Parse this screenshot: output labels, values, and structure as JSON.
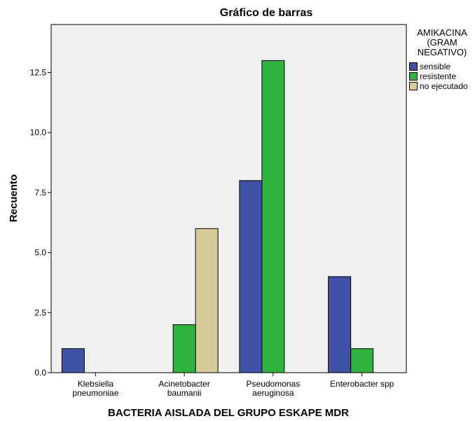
{
  "chart_data": {
    "type": "bar",
    "title": "Gráfico de barras",
    "xlabel": "BACTERIA AISLADA DEL GRUPO ESKAPE MDR",
    "ylabel": "Recuento",
    "categories": [
      [
        "Klebsiella",
        "pneumoniae"
      ],
      [
        "Acinetobacter",
        "baumanii"
      ],
      [
        "Pseudomonas",
        "aeruginosa"
      ],
      [
        "Enterobacter spp"
      ]
    ],
    "series": [
      {
        "name": "sensible",
        "color": "#3f52a5",
        "values": [
          1,
          0,
          8,
          4
        ]
      },
      {
        "name": "resistente",
        "color": "#2fb33f",
        "values": [
          0,
          2,
          13,
          1
        ]
      },
      {
        "name": "no ejecutado",
        "color": "#d5cc99",
        "values": [
          0,
          6,
          0,
          0
        ]
      }
    ],
    "ylim": [
      0,
      14.5
    ],
    "yticks": [
      0,
      2.5,
      5,
      7.5,
      10,
      12.5
    ],
    "ytick_labels": [
      "0.0",
      "2.5",
      "5.0",
      "7.5",
      "10.0",
      "12.5"
    ],
    "grid": false,
    "legend": {
      "title": "AMIKACINA\n(GRAM\nNEGATIVO)",
      "placement": "right"
    }
  }
}
